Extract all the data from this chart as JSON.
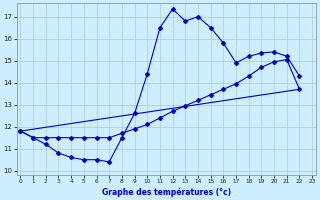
{
  "xlabel": "Graphe des températures (°c)",
  "background_color": "#cceeff",
  "grid_color": "#aacccc",
  "line_color": "#0000cc",
  "spine_color": "#8899aa",
  "ylim": [
    9.8,
    17.6
  ],
  "yticks": [
    10,
    11,
    12,
    13,
    14,
    15,
    16,
    17
  ],
  "xlim": [
    -0.3,
    23.3
  ],
  "xticks": [
    0,
    1,
    2,
    3,
    4,
    5,
    6,
    7,
    8,
    9,
    10,
    11,
    12,
    13,
    14,
    15,
    16,
    17,
    18,
    19,
    20,
    21,
    22,
    23
  ],
  "series1_x": [
    0,
    1,
    2,
    3,
    4,
    5,
    6,
    7,
    8,
    9,
    10,
    11,
    12,
    13,
    14,
    15,
    16,
    17,
    18,
    19,
    20,
    21,
    22
  ],
  "series1_y": [
    11.8,
    11.5,
    11.2,
    10.8,
    10.6,
    10.5,
    10.5,
    10.4,
    11.5,
    12.6,
    14.4,
    16.5,
    17.35,
    16.8,
    17.0,
    16.5,
    15.8,
    14.9,
    15.2,
    15.35,
    15.4,
    15.2,
    14.3
  ],
  "series2_x": [
    0,
    1,
    2,
    3,
    4,
    5,
    6,
    7,
    8,
    9,
    10,
    11,
    12,
    13,
    14,
    15,
    16,
    17,
    18,
    19,
    20,
    21,
    22
  ],
  "series2_y": [
    11.8,
    11.5,
    11.5,
    11.5,
    11.5,
    11.5,
    11.5,
    11.5,
    11.7,
    11.9,
    12.1,
    12.4,
    12.7,
    12.95,
    13.2,
    13.45,
    13.7,
    13.95,
    14.3,
    14.7,
    14.95,
    15.05,
    13.7
  ],
  "series3_x": [
    0,
    22
  ],
  "series3_y": [
    11.8,
    13.7
  ]
}
